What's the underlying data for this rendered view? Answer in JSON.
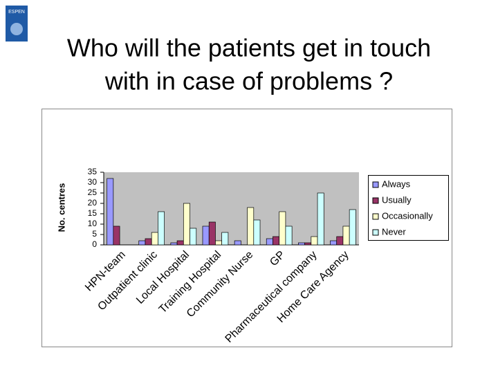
{
  "logo": "ESPEN",
  "chart_data": {
    "type": "bar",
    "title": [
      "Who will the patients get in touch",
      "with in case of problems ?"
    ],
    "y_label": "No. centres",
    "categories": [
      "HPN-team",
      "Outpatient clinic",
      "Local Hospital",
      "Training Hospital",
      "Community Nurse",
      "GP",
      "Pharmaceutical company",
      "Home Care Agency"
    ],
    "series": [
      {
        "name": "Always",
        "color": "#9999ff",
        "values": [
          32,
          2,
          1,
          9,
          2,
          3,
          1,
          2
        ]
      },
      {
        "name": "Usually",
        "color": "#993366",
        "values": [
          9,
          3,
          2,
          11,
          0,
          4,
          1,
          4
        ]
      },
      {
        "name": "Occasionally",
        "color": "#ffffcc",
        "values": [
          0,
          6,
          20,
          2,
          18,
          16,
          4,
          9
        ]
      },
      {
        "name": "Never",
        "color": "#ccffff",
        "values": [
          0,
          16,
          8,
          6,
          12,
          9,
          25,
          17
        ]
      }
    ],
    "ylim": [
      0,
      35
    ],
    "yticks": [
      0,
      5,
      10,
      15,
      20,
      25,
      30,
      35
    ],
    "legend": "right"
  }
}
